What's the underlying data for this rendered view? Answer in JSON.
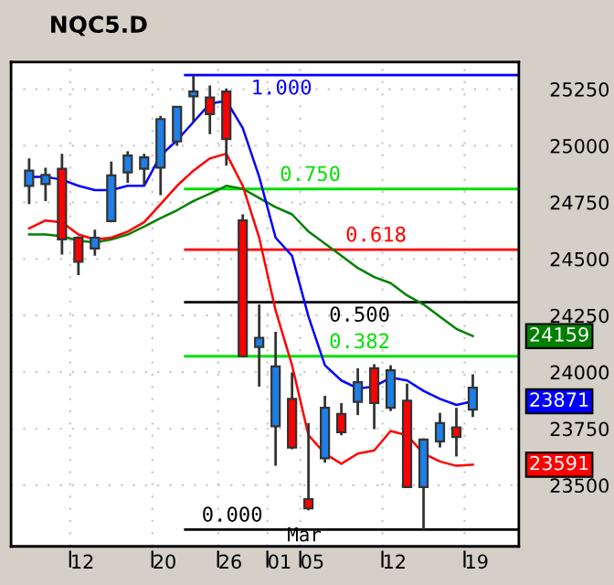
{
  "chart_data": {
    "type": "candlestick",
    "title": "NQC5.D",
    "categories": [
      null,
      null,
      null,
      "12",
      null,
      null,
      null,
      null,
      "20",
      null,
      null,
      null,
      "26",
      null,
      null,
      "01",
      null,
      "05",
      null,
      null,
      null,
      null,
      "12",
      null,
      null,
      null,
      null,
      "19"
    ],
    "ohlc": [
      [
        24823,
        24944,
        24742,
        24890
      ],
      [
        24831,
        24903,
        24756,
        24871
      ],
      [
        24898,
        24965,
        24519,
        24586
      ],
      [
        24594,
        24600,
        24428,
        24487
      ],
      [
        24546,
        24629,
        24514,
        24594
      ],
      [
        24667,
        24930,
        24662,
        24869
      ],
      [
        24882,
        24976,
        24836,
        24957
      ],
      [
        24898,
        24965,
        24823,
        24949
      ],
      [
        24903,
        25132,
        24782,
        25118
      ],
      [
        25019,
        25172,
        25000,
        25172
      ],
      [
        25218,
        25312,
        25105,
        25240
      ],
      [
        25213,
        25266,
        25051,
        25140
      ],
      [
        25240,
        25253,
        24912,
        25030
      ],
      [
        24670,
        24697,
        24065,
        24070
      ],
      [
        24111,
        24299,
        23936,
        24151
      ],
      [
        23761,
        24178,
        23586,
        24025
      ],
      [
        23882,
        23998,
        23659,
        23667
      ],
      [
        23439,
        23775,
        23390,
        23398
      ],
      [
        23619,
        23895,
        23600,
        23842
      ],
      [
        23815,
        23863,
        23721,
        23734
      ],
      [
        23869,
        24017,
        23810,
        23955
      ],
      [
        24017,
        24035,
        23748,
        23863
      ],
      [
        23842,
        24030,
        23828,
        24008
      ],
      [
        23874,
        23949,
        23492,
        23492
      ],
      [
        23492,
        23707,
        23304,
        23702
      ],
      [
        23694,
        23820,
        23667,
        23775
      ],
      [
        23756,
        23842,
        23627,
        23713
      ],
      [
        23834,
        23990,
        23801,
        23931
      ]
    ],
    "colors": [
      "#1e7fe6",
      "#1e7fe6",
      "#ff0000",
      "#ff0000",
      "#1e7fe6",
      "#1e7fe6",
      "#1e7fe6",
      "#1e7fe6",
      "#1e7fe6",
      "#1e7fe6",
      "#1e7fe6",
      "#ff0000",
      "#ff0000",
      "#ff0000",
      "#1e7fe6",
      "#1e7fe6",
      "#ff0000",
      "#ff0000",
      "#1e7fe6",
      "#ff0000",
      "#1e7fe6",
      "#ff0000",
      "#1e7fe6",
      "#ff0000",
      "#1e7fe6",
      "#1e7fe6",
      "#ff0000",
      "#1e7fe6"
    ],
    "series": [
      {
        "type": "line",
        "color": "#008000",
        "values": [
          24608,
          24608,
          24600,
          24581,
          24573,
          24586,
          24608,
          24643,
          24680,
          24715,
          24756,
          24788,
          24823,
          24810,
          24769,
          24729,
          24697,
          24621,
          24568,
          24514,
          24460,
          24420,
          24393,
          24339,
          24299,
          24245,
          24191,
          24159
        ]
      },
      {
        "type": "line",
        "color": "#0000ff",
        "values": [
          24863,
          24863,
          24850,
          24823,
          24804,
          24804,
          24823,
          24823,
          24957,
          25024,
          25105,
          25186,
          25199,
          25078,
          24863,
          24594,
          24514,
          24245,
          24030,
          23963,
          23928,
          23936,
          23976,
          23963,
          23917,
          23882,
          23855,
          23871
        ]
      },
      {
        "type": "line",
        "color": "#ff0000",
        "values": [
          24635,
          24670,
          24662,
          24608,
          24586,
          24594,
          24621,
          24662,
          24742,
          24823,
          24890,
          24944,
          24965,
          24823,
          24594,
          24272,
          24030,
          23721,
          23640,
          23595,
          23640,
          23654,
          23740,
          23721,
          23640,
          23605,
          23586,
          23591
        ]
      }
    ],
    "ref_lines": [
      {
        "axis": "y",
        "value": 25312,
        "color": "#0000ff"
      },
      {
        "axis": "y",
        "value": 24809,
        "color": "#00e000"
      },
      {
        "axis": "y",
        "value": 24541,
        "color": "#ff0000"
      },
      {
        "axis": "y",
        "value": 24309,
        "color": "#000000"
      },
      {
        "axis": "y",
        "value": 24070,
        "color": "#00e000"
      },
      {
        "axis": "y",
        "value": 23304,
        "color": "#000000"
      }
    ],
    "annotations": [
      "Mar",
      "24159",
      "23871",
      "23591",
      {
        "text": "1.000",
        "y": 25312
      },
      {
        "text": "0.750",
        "y": 24809
      },
      {
        "text": "0.618",
        "y": 24541
      },
      {
        "text": "0.500",
        "y": 24309
      },
      {
        "text": "0.382",
        "y": 24070
      },
      {
        "text": "0.000",
        "y": 23304
      }
    ],
    "ylim": [
      23230,
      25370
    ],
    "yticks": [
      23500,
      23750,
      24000,
      24250,
      24500,
      24750,
      25000,
      25250
    ],
    "grid": true
  }
}
